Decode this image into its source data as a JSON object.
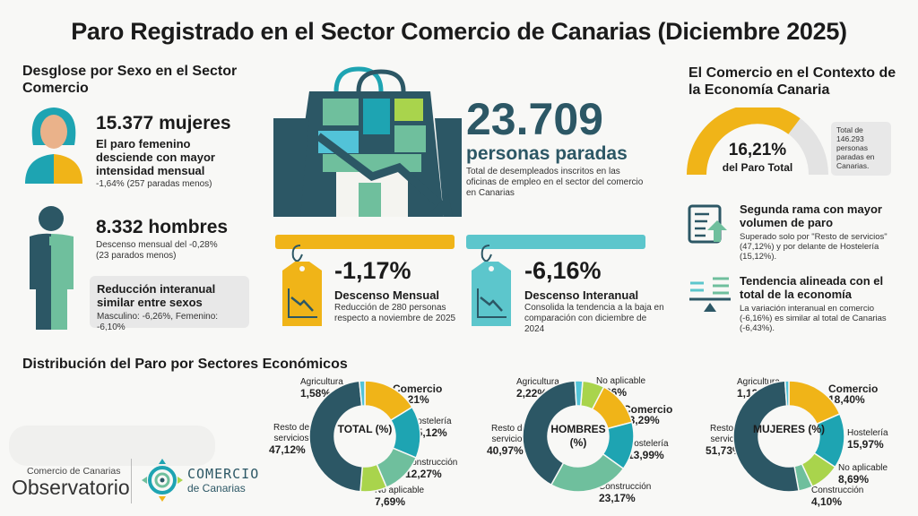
{
  "title": "Paro Registrado en el Sector Comercio de Canarias (Diciembre 2025)",
  "gender": {
    "heading": "Desglose por Sexo en el Sector Comercio",
    "women_value": "15.377 mujeres",
    "women_sub": "El paro femenino desciende con mayor intensidad mensual",
    "women_detail": "-1,64% (257 paradas menos)",
    "men_value": "8.332 hombres",
    "men_detail_1": "Descenso mensual del -0,28%",
    "men_detail_2": "(23 parados menos)",
    "callout_title": "Reducción interanual similar entre sexos",
    "callout_detail": "Masculino: -6,26%, Femenino: -6,10%"
  },
  "headline": {
    "value": "23.709",
    "unit": "personas paradas",
    "desc": "Total de desempleados inscritos en las oficinas de empleo en el sector del comercio en Canarias"
  },
  "monthly": {
    "value": "-1,17%",
    "label": "Descenso Mensual",
    "desc": "Reducción de 280 personas respecto a noviembre de 2025",
    "color": "#f0b418"
  },
  "yearly": {
    "value": "-6,16%",
    "label": "Descenso Interanual",
    "desc": "Consolida la tendencia a la baja en comparación con diciembre de 2024",
    "color": "#5cc6cc"
  },
  "context": {
    "heading": "El Comercio en el Contexto de la Economía Canaria",
    "gauge_value": "16,21%",
    "gauge_label": "del Paro Total",
    "gauge_note": "Total de 146.293 personas paradas en Canarias.",
    "item1_title": "Segunda rama con mayor volumen de paro",
    "item1_desc": "Superado solo por \"Resto de servicios\" (47,12%) y por delante de Hostelería (15,12%).",
    "item2_title": "Tendencia alineada con el total de la economía",
    "item2_desc": "La variación interanual en comercio (-6,16%) es similar al total de Canarias (-6,43%)."
  },
  "distribution_heading": "Distribución del Paro por Sectores Económicos",
  "logos": {
    "obs_small": "Comercio de Canarias",
    "obs_big": "Observatorio",
    "brand_big": "COMERCIO",
    "brand_small": "de Canarias"
  },
  "chart_data": [
    {
      "type": "pie",
      "title": "TOTAL (%)",
      "categories": [
        "Comercio",
        "Hostelería",
        "Construcción",
        "No aplicable",
        "Resto de servicios",
        "Agricultura"
      ],
      "values": [
        16.21,
        15.12,
        12.27,
        7.69,
        47.12,
        1.58
      ],
      "labels": [
        "16,21%",
        "15,12%",
        "12,27%",
        "7,69%",
        "47,12%",
        "1,58%"
      ]
    },
    {
      "type": "pie",
      "title": "HOMBRES (%)",
      "categories": [
        "No aplicable",
        "Comercio",
        "Hostelería",
        "Construcción",
        "Resto de servicios",
        "Agricultura"
      ],
      "values": [
        6.36,
        13.29,
        13.99,
        23.17,
        40.97,
        2.22
      ],
      "labels": [
        "6,36%",
        "13,29%",
        "13,99%",
        "23,17%",
        "40,97%",
        "2,22%"
      ]
    },
    {
      "type": "pie",
      "title": "MUJERES (%)",
      "categories": [
        "Comercio",
        "Hostelería",
        "No aplicable",
        "Construcción",
        "Resto de servicios",
        "Agricultura"
      ],
      "values": [
        18.4,
        15.97,
        8.69,
        4.1,
        51.73,
        1.12
      ],
      "labels": [
        "18,40%",
        "15,97%",
        "8,69%",
        "4,10%",
        "51,73%",
        "1,12%"
      ]
    }
  ],
  "sector_colors": {
    "Comercio": "#f0b418",
    "Hostelería": "#1ea4b2",
    "Construcción": "#6fbf9d",
    "No aplicable": "#a9d44c",
    "Resto de servicios": "#2c5765",
    "Agricultura": "#52c3d8"
  }
}
